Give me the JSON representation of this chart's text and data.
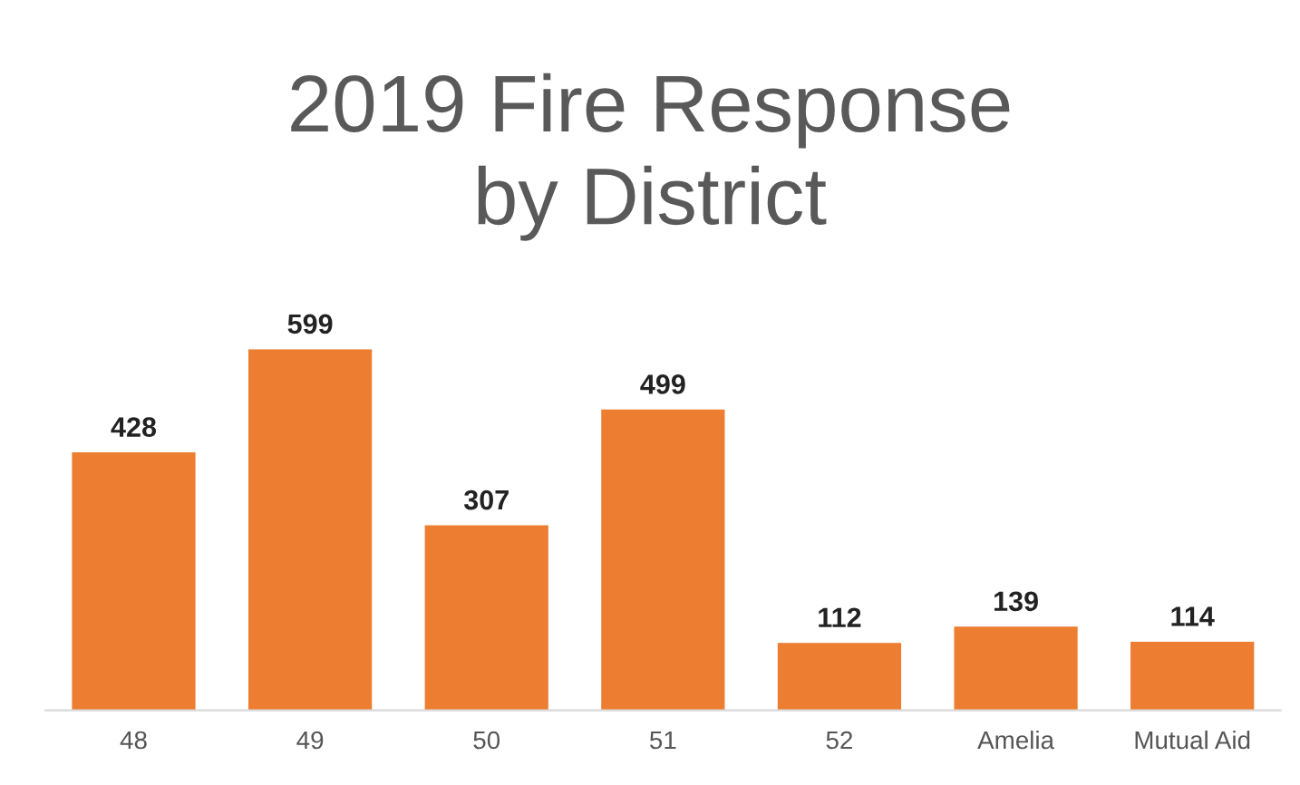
{
  "chart_data": {
    "type": "bar",
    "title": "2019 Fire Response\nby District",
    "categories": [
      "48",
      "49",
      "50",
      "51",
      "52",
      "Amelia",
      "Mutual Aid"
    ],
    "values": [
      428,
      599,
      307,
      499,
      112,
      139,
      114
    ],
    "color": "#ed7d31",
    "data_labels": true,
    "grid": false,
    "legend": false
  }
}
